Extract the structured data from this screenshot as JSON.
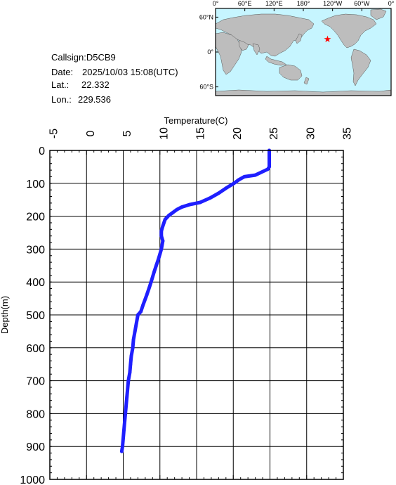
{
  "info": {
    "callsign_line": "Callsign:D5CB9",
    "date_label": "Date:",
    "date_value": "2025/10/03 15:08(UTC)",
    "lat_label": "Lat.:",
    "lat_value": "22.332",
    "lon_label": "Lon.:",
    "lon_value": "229.536"
  },
  "map": {
    "top_labels": [
      "0°",
      "60°E",
      "120°E",
      "180°",
      "120°W",
      "60°W",
      "0°"
    ],
    "left_labels": [
      "60°N",
      "0°",
      "60°S"
    ],
    "ocean_color": "#c6f5ff",
    "land_color": "#bdbdbd",
    "marker_color": "#ff0000",
    "marker_lon": 229.536,
    "marker_lat": 22.332
  },
  "chart_data": {
    "type": "line",
    "xlabel": "Temperature(C)",
    "ylabel": "Depth(m)",
    "xlim": [
      -5,
      35
    ],
    "ylim": [
      1000,
      0
    ],
    "x_ticks": [
      -5,
      0,
      5,
      10,
      15,
      20,
      25,
      30,
      35
    ],
    "y_ticks": [
      0,
      100,
      200,
      300,
      400,
      500,
      600,
      700,
      800,
      900,
      1000
    ],
    "grid": true,
    "line_color": "#1f1fff",
    "series": [
      {
        "x": [
          24.9,
          24.9,
          24.9,
          24.7,
          23.0,
          21.5,
          20.7,
          20.1,
          19.0,
          18.0,
          16.8,
          15.5,
          14.0,
          13.0,
          12.3,
          11.7,
          11.2,
          10.7,
          10.4,
          10.2,
          10.2,
          10.4,
          10.2,
          10.0,
          9.8,
          9.5,
          9.2,
          8.8,
          8.5,
          8.2,
          7.7,
          7.4,
          7.0,
          6.8,
          6.6,
          6.4,
          6.3,
          6.1,
          6.0,
          5.9,
          5.7,
          5.5,
          5.3,
          5.1,
          4.9,
          4.8
        ],
        "y": [
          0,
          20,
          50,
          57,
          75,
          80,
          90,
          100,
          115,
          130,
          145,
          158,
          165,
          172,
          180,
          190,
          198,
          210,
          230,
          245,
          260,
          275,
          300,
          315,
          330,
          350,
          370,
          400,
          420,
          440,
          470,
          490,
          500,
          525,
          550,
          575,
          600,
          625,
          650,
          675,
          700,
          750,
          800,
          850,
          900,
          915
        ]
      }
    ]
  }
}
